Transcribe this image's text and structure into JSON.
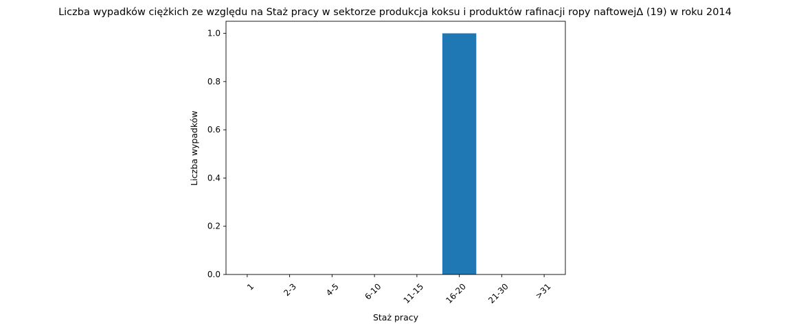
{
  "chart_data": {
    "type": "bar",
    "title": "Liczba wypadków ciężkich ze względu na Staż pracy w sektorze produkcja koksu i produktów rafinacji ropy naftowejΔ (19) w roku 2014",
    "xlabel": "Staż pracy",
    "ylabel": "Liczba wypadków",
    "categories": [
      "1",
      "2-3",
      "4-5",
      "6-10",
      "11-15",
      "16-20",
      "21-30",
      ">31"
    ],
    "values": [
      0,
      0,
      0,
      0,
      0,
      1,
      0,
      0
    ],
    "ylim": [
      0,
      1.05
    ],
    "yticks": [
      0.0,
      0.2,
      0.4,
      0.6,
      0.8,
      1.0
    ],
    "ytick_labels": [
      "0.0",
      "0.2",
      "0.4",
      "0.6",
      "0.8",
      "1.0"
    ],
    "bar_color": "#1f77b4",
    "grid": false,
    "xtick_rotation": 45
  }
}
